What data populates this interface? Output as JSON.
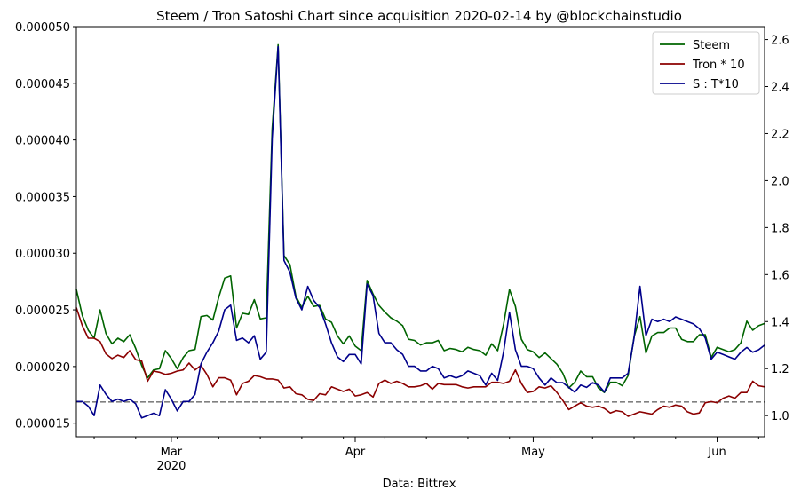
{
  "chart_data": {
    "type": "line",
    "title": "Steem / Tron Satoshi Chart since acquisition 2020-02-14 by @blockchainstudio",
    "xlabel": "Data: Bittrex",
    "ylabel_left": "",
    "ylabel_right": "",
    "x_range": [
      "2020-02-14",
      "2020-06-09"
    ],
    "x_ticks": [
      {
        "date": "2020-03-01",
        "label": "Mar",
        "sublabel": "2020"
      },
      {
        "date": "2020-04-01",
        "label": "Apr",
        "sublabel": ""
      },
      {
        "date": "2020-05-01",
        "label": "May",
        "sublabel": ""
      },
      {
        "date": "2020-06-01",
        "label": "Jun",
        "sublabel": ""
      }
    ],
    "y_left": {
      "lim": [
        1.38e-05,
        5e-05
      ],
      "ticks": [
        "0.000015",
        "0.000020",
        "0.000025",
        "0.000030",
        "0.000035",
        "0.000040",
        "0.000045",
        "0.000050"
      ],
      "tick_values": [
        1.5e-05,
        2e-05,
        2.5e-05,
        3e-05,
        3.5e-05,
        4e-05,
        4.5e-05,
        5e-05
      ]
    },
    "y_right": {
      "lim": [
        0.91,
        2.655
      ],
      "ticks": [
        "1.0",
        "1.2",
        "1.4",
        "1.6",
        "1.8",
        "2.0",
        "2.2",
        "2.4",
        "2.6"
      ],
      "tick_values": [
        1.0,
        1.2,
        1.4,
        1.6,
        1.8,
        2.0,
        2.2,
        2.4,
        2.6
      ]
    },
    "hline": {
      "value": 1.058,
      "axis": "right",
      "color": "#808080",
      "style": "dashed"
    },
    "legend": {
      "placement": "top-right"
    },
    "grid": false,
    "series": [
      {
        "name": "Steem",
        "axis": "left",
        "color": "#006400",
        "x": [
          "2020-02-14",
          "2020-02-15",
          "2020-02-16",
          "2020-02-17",
          "2020-02-18",
          "2020-02-19",
          "2020-02-20",
          "2020-02-21",
          "2020-02-22",
          "2020-02-23",
          "2020-02-24",
          "2020-02-25",
          "2020-02-26",
          "2020-02-27",
          "2020-02-28",
          "2020-02-29",
          "2020-03-01",
          "2020-03-02",
          "2020-03-03",
          "2020-03-04",
          "2020-03-05",
          "2020-03-06",
          "2020-03-07",
          "2020-03-08",
          "2020-03-09",
          "2020-03-10",
          "2020-03-11",
          "2020-03-12",
          "2020-03-13",
          "2020-03-14",
          "2020-03-15",
          "2020-03-16",
          "2020-03-17",
          "2020-03-18",
          "2020-03-19",
          "2020-03-20",
          "2020-03-21",
          "2020-03-22",
          "2020-03-23",
          "2020-03-24",
          "2020-03-25",
          "2020-03-26",
          "2020-03-27",
          "2020-03-28",
          "2020-03-29",
          "2020-03-30",
          "2020-03-31",
          "2020-04-01",
          "2020-04-02",
          "2020-04-03",
          "2020-04-04",
          "2020-04-05",
          "2020-04-06",
          "2020-04-07",
          "2020-04-08",
          "2020-04-09",
          "2020-04-10",
          "2020-04-11",
          "2020-04-12",
          "2020-04-13",
          "2020-04-14",
          "2020-04-15",
          "2020-04-16",
          "2020-04-17",
          "2020-04-18",
          "2020-04-19",
          "2020-04-20",
          "2020-04-21",
          "2020-04-22",
          "2020-04-23",
          "2020-04-24",
          "2020-04-25",
          "2020-04-26",
          "2020-04-27",
          "2020-04-28",
          "2020-04-29",
          "2020-04-30",
          "2020-05-01",
          "2020-05-02",
          "2020-05-03",
          "2020-05-04",
          "2020-05-05",
          "2020-05-06",
          "2020-05-07",
          "2020-05-08",
          "2020-05-09",
          "2020-05-10",
          "2020-05-11",
          "2020-05-12",
          "2020-05-13",
          "2020-05-14",
          "2020-05-15",
          "2020-05-16",
          "2020-05-17",
          "2020-05-18",
          "2020-05-19",
          "2020-05-20",
          "2020-05-21",
          "2020-05-22",
          "2020-05-23",
          "2020-05-24",
          "2020-05-25",
          "2020-05-26",
          "2020-05-27",
          "2020-05-28",
          "2020-05-29",
          "2020-05-30",
          "2020-05-31",
          "2020-06-01",
          "2020-06-02",
          "2020-06-03",
          "2020-06-04",
          "2020-06-05",
          "2020-06-06",
          "2020-06-07",
          "2020-06-08",
          "2020-06-09"
        ],
        "y": [
          2.68e-05,
          2.45e-05,
          2.32e-05,
          2.25e-05,
          2.5e-05,
          2.29e-05,
          2.2e-05,
          2.25e-05,
          2.22e-05,
          2.28e-05,
          2.16e-05,
          2.01e-05,
          1.9e-05,
          1.97e-05,
          1.98e-05,
          2.14e-05,
          2.07e-05,
          1.98e-05,
          2.08e-05,
          2.14e-05,
          2.15e-05,
          2.44e-05,
          2.45e-05,
          2.41e-05,
          2.61e-05,
          2.78e-05,
          2.8e-05,
          2.34e-05,
          2.47e-05,
          2.46e-05,
          2.59e-05,
          2.42e-05,
          2.43e-05,
          4.1e-05,
          4.84e-05,
          2.98e-05,
          2.9e-05,
          2.62e-05,
          2.52e-05,
          2.62e-05,
          2.53e-05,
          2.54e-05,
          2.42e-05,
          2.39e-05,
          2.27e-05,
          2.2e-05,
          2.27e-05,
          2.18e-05,
          2.14e-05,
          2.76e-05,
          2.64e-05,
          2.54e-05,
          2.48e-05,
          2.43e-05,
          2.4e-05,
          2.36e-05,
          2.24e-05,
          2.23e-05,
          2.19e-05,
          2.21e-05,
          2.21e-05,
          2.23e-05,
          2.14e-05,
          2.16e-05,
          2.15e-05,
          2.13e-05,
          2.17e-05,
          2.15e-05,
          2.14e-05,
          2.1e-05,
          2.2e-05,
          2.14e-05,
          2.37e-05,
          2.68e-05,
          2.53e-05,
          2.24e-05,
          2.15e-05,
          2.13e-05,
          2.08e-05,
          2.12e-05,
          2.07e-05,
          2.02e-05,
          1.94e-05,
          1.81e-05,
          1.86e-05,
          1.96e-05,
          1.91e-05,
          1.91e-05,
          1.81e-05,
          1.77e-05,
          1.86e-05,
          1.86e-05,
          1.83e-05,
          1.92e-05,
          2.26e-05,
          2.44e-05,
          2.12e-05,
          2.27e-05,
          2.3e-05,
          2.3e-05,
          2.34e-05,
          2.34e-05,
          2.24e-05,
          2.22e-05,
          2.22e-05,
          2.28e-05,
          2.28e-05,
          2.08e-05,
          2.17e-05,
          2.15e-05,
          2.13e-05,
          2.15e-05,
          2.21e-05,
          2.4e-05,
          2.32e-05,
          2.36e-05,
          2.38e-05
        ]
      },
      {
        "name": "Tron * 10",
        "axis": "left",
        "color": "#8b0000",
        "x": [
          "2020-02-14",
          "2020-02-15",
          "2020-02-16",
          "2020-02-17",
          "2020-02-18",
          "2020-02-19",
          "2020-02-20",
          "2020-02-21",
          "2020-02-22",
          "2020-02-23",
          "2020-02-24",
          "2020-02-25",
          "2020-02-26",
          "2020-02-27",
          "2020-02-28",
          "2020-02-29",
          "2020-03-01",
          "2020-03-02",
          "2020-03-03",
          "2020-03-04",
          "2020-03-05",
          "2020-03-06",
          "2020-03-07",
          "2020-03-08",
          "2020-03-09",
          "2020-03-10",
          "2020-03-11",
          "2020-03-12",
          "2020-03-13",
          "2020-03-14",
          "2020-03-15",
          "2020-03-16",
          "2020-03-17",
          "2020-03-18",
          "2020-03-19",
          "2020-03-20",
          "2020-03-21",
          "2020-03-22",
          "2020-03-23",
          "2020-03-24",
          "2020-03-25",
          "2020-03-26",
          "2020-03-27",
          "2020-03-28",
          "2020-03-29",
          "2020-03-30",
          "2020-03-31",
          "2020-04-01",
          "2020-04-02",
          "2020-04-03",
          "2020-04-04",
          "2020-04-05",
          "2020-04-06",
          "2020-04-07",
          "2020-04-08",
          "2020-04-09",
          "2020-04-10",
          "2020-04-11",
          "2020-04-12",
          "2020-04-13",
          "2020-04-14",
          "2020-04-15",
          "2020-04-16",
          "2020-04-17",
          "2020-04-18",
          "2020-04-19",
          "2020-04-20",
          "2020-04-21",
          "2020-04-22",
          "2020-04-23",
          "2020-04-24",
          "2020-04-25",
          "2020-04-26",
          "2020-04-27",
          "2020-04-28",
          "2020-04-29",
          "2020-04-30",
          "2020-05-01",
          "2020-05-02",
          "2020-05-03",
          "2020-05-04",
          "2020-05-05",
          "2020-05-06",
          "2020-05-07",
          "2020-05-08",
          "2020-05-09",
          "2020-05-10",
          "2020-05-11",
          "2020-05-12",
          "2020-05-13",
          "2020-05-14",
          "2020-05-15",
          "2020-05-16",
          "2020-05-17",
          "2020-05-18",
          "2020-05-19",
          "2020-05-20",
          "2020-05-21",
          "2020-05-22",
          "2020-05-23",
          "2020-05-24",
          "2020-05-25",
          "2020-05-26",
          "2020-05-27",
          "2020-05-28",
          "2020-05-29",
          "2020-05-30",
          "2020-05-31",
          "2020-06-01",
          "2020-06-02",
          "2020-06-03",
          "2020-06-04",
          "2020-06-05",
          "2020-06-06",
          "2020-06-07",
          "2020-06-08",
          "2020-06-09"
        ],
        "y": [
          2.52e-05,
          2.36e-05,
          2.25e-05,
          2.25e-05,
          2.22e-05,
          2.11e-05,
          2.07e-05,
          2.1e-05,
          2.08e-05,
          2.14e-05,
          2.06e-05,
          2.05e-05,
          1.87e-05,
          1.96e-05,
          1.95e-05,
          1.93e-05,
          1.94e-05,
          1.96e-05,
          1.97e-05,
          2.03e-05,
          1.97e-05,
          2.01e-05,
          1.93e-05,
          1.82e-05,
          1.9e-05,
          1.9e-05,
          1.88e-05,
          1.75e-05,
          1.85e-05,
          1.87e-05,
          1.92e-05,
          1.91e-05,
          1.89e-05,
          1.89e-05,
          1.88e-05,
          1.81e-05,
          1.82e-05,
          1.76e-05,
          1.75e-05,
          1.71e-05,
          1.7e-05,
          1.76e-05,
          1.75e-05,
          1.82e-05,
          1.8e-05,
          1.78e-05,
          1.8e-05,
          1.74e-05,
          1.75e-05,
          1.77e-05,
          1.73e-05,
          1.85e-05,
          1.88e-05,
          1.85e-05,
          1.87e-05,
          1.85e-05,
          1.82e-05,
          1.82e-05,
          1.83e-05,
          1.85e-05,
          1.8e-05,
          1.85e-05,
          1.84e-05,
          1.84e-05,
          1.84e-05,
          1.82e-05,
          1.81e-05,
          1.82e-05,
          1.82e-05,
          1.82e-05,
          1.86e-05,
          1.86e-05,
          1.85e-05,
          1.87e-05,
          1.97e-05,
          1.85e-05,
          1.77e-05,
          1.78e-05,
          1.82e-05,
          1.81e-05,
          1.83e-05,
          1.77e-05,
          1.7e-05,
          1.62e-05,
          1.65e-05,
          1.68e-05,
          1.65e-05,
          1.64e-05,
          1.65e-05,
          1.63e-05,
          1.59e-05,
          1.61e-05,
          1.6e-05,
          1.56e-05,
          1.58e-05,
          1.6e-05,
          1.59e-05,
          1.58e-05,
          1.62e-05,
          1.65e-05,
          1.64e-05,
          1.66e-05,
          1.65e-05,
          1.6e-05,
          1.58e-05,
          1.59e-05,
          1.68e-05,
          1.69e-05,
          1.68e-05,
          1.72e-05,
          1.74e-05,
          1.72e-05,
          1.77e-05,
          1.77e-05,
          1.87e-05,
          1.83e-05,
          1.82e-05
        ]
      },
      {
        "name": "S : T*10",
        "axis": "right",
        "color": "#00008b",
        "x": [
          "2020-02-14",
          "2020-02-15",
          "2020-02-16",
          "2020-02-17",
          "2020-02-18",
          "2020-02-19",
          "2020-02-20",
          "2020-02-21",
          "2020-02-22",
          "2020-02-23",
          "2020-02-24",
          "2020-02-25",
          "2020-02-26",
          "2020-02-27",
          "2020-02-28",
          "2020-02-29",
          "2020-03-01",
          "2020-03-02",
          "2020-03-03",
          "2020-03-04",
          "2020-03-05",
          "2020-03-06",
          "2020-03-07",
          "2020-03-08",
          "2020-03-09",
          "2020-03-10",
          "2020-03-11",
          "2020-03-12",
          "2020-03-13",
          "2020-03-14",
          "2020-03-15",
          "2020-03-16",
          "2020-03-17",
          "2020-03-18",
          "2020-03-19",
          "2020-03-20",
          "2020-03-21",
          "2020-03-22",
          "2020-03-23",
          "2020-03-24",
          "2020-03-25",
          "2020-03-26",
          "2020-03-27",
          "2020-03-28",
          "2020-03-29",
          "2020-03-30",
          "2020-03-31",
          "2020-04-01",
          "2020-04-02",
          "2020-04-03",
          "2020-04-04",
          "2020-04-05",
          "2020-04-06",
          "2020-04-07",
          "2020-04-08",
          "2020-04-09",
          "2020-04-10",
          "2020-04-11",
          "2020-04-12",
          "2020-04-13",
          "2020-04-14",
          "2020-04-15",
          "2020-04-16",
          "2020-04-17",
          "2020-04-18",
          "2020-04-19",
          "2020-04-20",
          "2020-04-21",
          "2020-04-22",
          "2020-04-23",
          "2020-04-24",
          "2020-04-25",
          "2020-04-26",
          "2020-04-27",
          "2020-04-28",
          "2020-04-29",
          "2020-04-30",
          "2020-05-01",
          "2020-05-02",
          "2020-05-03",
          "2020-05-04",
          "2020-05-05",
          "2020-05-06",
          "2020-05-07",
          "2020-05-08",
          "2020-05-09",
          "2020-05-10",
          "2020-05-11",
          "2020-05-12",
          "2020-05-13",
          "2020-05-14",
          "2020-05-15",
          "2020-05-16",
          "2020-05-17",
          "2020-05-18",
          "2020-05-19",
          "2020-05-20",
          "2020-05-21",
          "2020-05-22",
          "2020-05-23",
          "2020-05-24",
          "2020-05-25",
          "2020-05-26",
          "2020-05-27",
          "2020-05-28",
          "2020-05-29",
          "2020-05-30",
          "2020-05-31",
          "2020-06-01",
          "2020-06-02",
          "2020-06-03",
          "2020-06-04",
          "2020-06-05",
          "2020-06-06",
          "2020-06-07",
          "2020-06-08",
          "2020-06-09"
        ],
        "y": [
          1.06,
          1.06,
          1.04,
          1.0,
          1.13,
          1.09,
          1.06,
          1.07,
          1.06,
          1.07,
          1.05,
          0.99,
          1.0,
          1.01,
          1.0,
          1.11,
          1.07,
          1.02,
          1.06,
          1.06,
          1.09,
          1.22,
          1.27,
          1.31,
          1.36,
          1.45,
          1.47,
          1.32,
          1.33,
          1.31,
          1.34,
          1.24,
          1.27,
          2.18,
          2.57,
          1.66,
          1.61,
          1.5,
          1.45,
          1.55,
          1.49,
          1.46,
          1.39,
          1.31,
          1.25,
          1.23,
          1.26,
          1.26,
          1.22,
          1.56,
          1.51,
          1.35,
          1.31,
          1.31,
          1.28,
          1.26,
          1.21,
          1.21,
          1.19,
          1.19,
          1.21,
          1.2,
          1.16,
          1.17,
          1.16,
          1.17,
          1.19,
          1.18,
          1.17,
          1.13,
          1.18,
          1.15,
          1.27,
          1.44,
          1.28,
          1.21,
          1.21,
          1.2,
          1.16,
          1.13,
          1.16,
          1.14,
          1.14,
          1.12,
          1.1,
          1.13,
          1.12,
          1.14,
          1.13,
          1.1,
          1.16,
          1.16,
          1.16,
          1.18,
          1.33,
          1.55,
          1.34,
          1.41,
          1.4,
          1.41,
          1.4,
          1.42,
          1.41,
          1.4,
          1.39,
          1.37,
          1.33,
          1.24,
          1.27,
          1.26,
          1.25,
          1.24,
          1.27,
          1.29,
          1.27,
          1.28,
          1.3
        ]
      }
    ]
  }
}
